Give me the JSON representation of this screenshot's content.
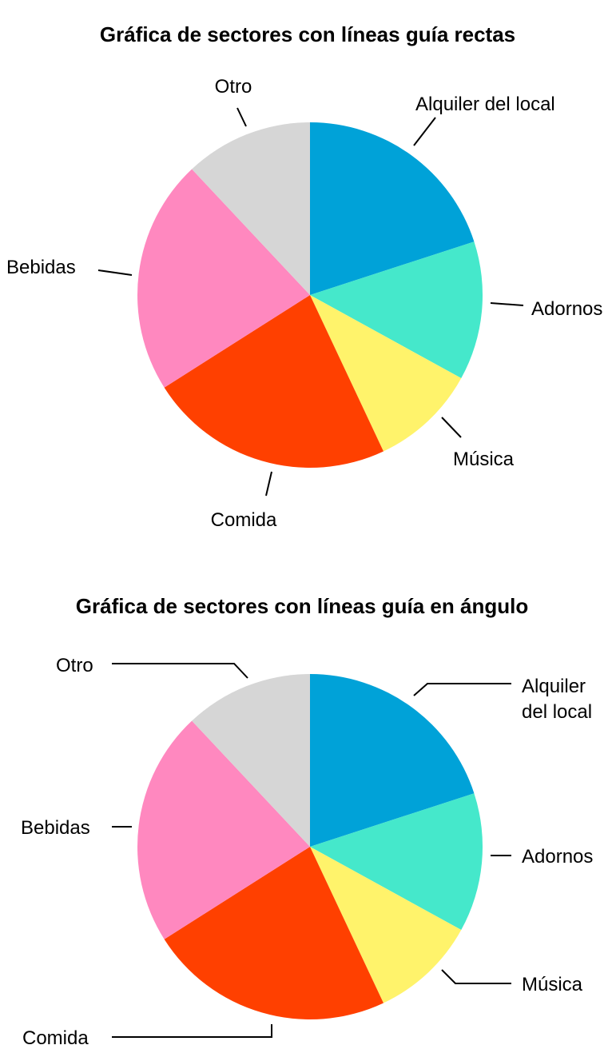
{
  "chart_data": [
    {
      "type": "pie",
      "title": "Gráfica de sectores con líneas guía rectas",
      "slices": [
        {
          "label": "Alquiler del local",
          "value": 20,
          "color": "#00A2D8"
        },
        {
          "label": "Adornos",
          "value": 13,
          "color": "#45E8CB"
        },
        {
          "label": "Música",
          "value": 10,
          "color": "#FFF36B"
        },
        {
          "label": "Comida",
          "value": 23,
          "color": "#FF4000"
        },
        {
          "label": "Bebidas",
          "value": 22,
          "color": "#FF88BF"
        },
        {
          "label": "Otro",
          "value": 12,
          "color": "#D6D6D6"
        }
      ]
    },
    {
      "type": "pie",
      "title": "Gráfica de sectores con líneas guía en ángulo",
      "slices": [
        {
          "label": "Alquiler del local",
          "lines": [
            "Alquiler",
            "del local"
          ],
          "value": 20,
          "color": "#00A2D8"
        },
        {
          "label": "Adornos",
          "value": 13,
          "color": "#45E8CB"
        },
        {
          "label": "Música",
          "value": 10,
          "color": "#FFF36B"
        },
        {
          "label": "Comida",
          "value": 23,
          "color": "#FF4000"
        },
        {
          "label": "Bebidas",
          "value": 22,
          "color": "#FF88BF"
        },
        {
          "label": "Otro",
          "value": 12,
          "color": "#D6D6D6"
        }
      ]
    }
  ]
}
